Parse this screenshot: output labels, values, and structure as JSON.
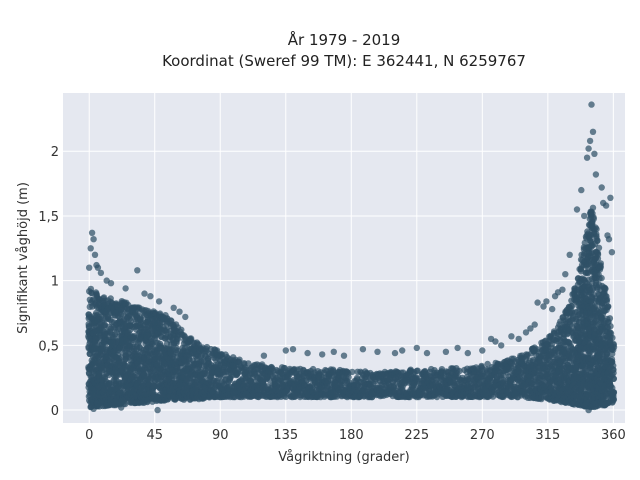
{
  "chart_data": {
    "type": "scatter",
    "title": "År 1979 - 2019",
    "subtitle": "Koordinat (Sweref 99 TM): E 362441, N 6259767",
    "xlabel": "Vågriktning (grader)",
    "ylabel": "Signifikant våghöjd (m)",
    "xlim": [
      -18,
      368
    ],
    "ylim": [
      -0.1,
      2.45
    ],
    "x_ticks": [
      0,
      45,
      90,
      135,
      180,
      225,
      270,
      315,
      360
    ],
    "x_tick_labels": [
      "0",
      "45",
      "90",
      "135",
      "180",
      "225",
      "270",
      "315",
      "360"
    ],
    "y_ticks": [
      0,
      0.5,
      1,
      1.5,
      2
    ],
    "y_tick_labels": [
      "0",
      "0,5",
      "1",
      "1,5",
      "2"
    ],
    "grid": true,
    "marker_color": "#2f5167",
    "background_color": "#e5e8f0",
    "envelope": {
      "description_x": [
        0,
        10,
        20,
        30,
        40,
        50,
        55,
        60,
        65,
        70,
        75,
        80,
        85,
        90,
        100,
        110,
        120,
        135,
        150,
        165,
        180,
        195,
        210,
        225,
        240,
        255,
        270,
        285,
        295,
        305,
        315,
        320,
        325,
        330,
        335,
        340,
        345,
        350,
        355,
        360
      ],
      "upper_y": [
        0.95,
        0.88,
        0.85,
        0.82,
        0.78,
        0.75,
        0.72,
        0.68,
        0.6,
        0.55,
        0.52,
        0.5,
        0.48,
        0.45,
        0.4,
        0.37,
        0.35,
        0.33,
        0.32,
        0.32,
        0.3,
        0.3,
        0.3,
        0.32,
        0.32,
        0.33,
        0.35,
        0.38,
        0.42,
        0.48,
        0.56,
        0.62,
        0.72,
        0.82,
        1.0,
        1.3,
        1.6,
        1.3,
        0.9,
        0.55
      ],
      "lower_y": [
        0.02,
        0.03,
        0.04,
        0.05,
        0.06,
        0.07,
        0.08,
        0.08,
        0.08,
        0.08,
        0.08,
        0.09,
        0.1,
        0.1,
        0.1,
        0.1,
        0.1,
        0.1,
        0.1,
        0.1,
        0.1,
        0.1,
        0.1,
        0.1,
        0.1,
        0.1,
        0.1,
        0.1,
        0.1,
        0.09,
        0.08,
        0.07,
        0.06,
        0.05,
        0.04,
        0.03,
        0.02,
        0.03,
        0.04,
        0.06
      ]
    },
    "outliers": [
      {
        "x": 345,
        "y": 2.36
      },
      {
        "x": 346,
        "y": 2.15
      },
      {
        "x": 344,
        "y": 2.08
      },
      {
        "x": 343,
        "y": 2.02
      },
      {
        "x": 347,
        "y": 1.98
      },
      {
        "x": 342,
        "y": 1.95
      },
      {
        "x": 348,
        "y": 1.82
      },
      {
        "x": 352,
        "y": 1.72
      },
      {
        "x": 355,
        "y": 1.58
      },
      {
        "x": 358,
        "y": 1.64
      },
      {
        "x": 357,
        "y": 1.32
      },
      {
        "x": 359,
        "y": 1.22
      },
      {
        "x": 356,
        "y": 1.35
      },
      {
        "x": 353,
        "y": 1.6
      },
      {
        "x": 338,
        "y": 1.7
      },
      {
        "x": 340,
        "y": 1.5
      },
      {
        "x": 335,
        "y": 1.55
      },
      {
        "x": 330,
        "y": 1.2
      },
      {
        "x": 327,
        "y": 1.05
      },
      {
        "x": 2,
        "y": 1.37
      },
      {
        "x": 3,
        "y": 1.32
      },
      {
        "x": 1,
        "y": 1.25
      },
      {
        "x": 4,
        "y": 1.2
      },
      {
        "x": 5,
        "y": 1.12
      },
      {
        "x": 6,
        "y": 1.1
      },
      {
        "x": 8,
        "y": 1.06
      },
      {
        "x": 0,
        "y": 1.1
      },
      {
        "x": 33,
        "y": 1.08
      },
      {
        "x": 12,
        "y": 1.0
      },
      {
        "x": 15,
        "y": 0.98
      },
      {
        "x": 25,
        "y": 0.94
      },
      {
        "x": 38,
        "y": 0.9
      },
      {
        "x": 42,
        "y": 0.88
      },
      {
        "x": 48,
        "y": 0.84
      },
      {
        "x": 58,
        "y": 0.79
      },
      {
        "x": 62,
        "y": 0.76
      },
      {
        "x": 66,
        "y": 0.72
      },
      {
        "x": 120,
        "y": 0.42
      },
      {
        "x": 135,
        "y": 0.46
      },
      {
        "x": 140,
        "y": 0.47
      },
      {
        "x": 150,
        "y": 0.44
      },
      {
        "x": 160,
        "y": 0.43
      },
      {
        "x": 168,
        "y": 0.45
      },
      {
        "x": 175,
        "y": 0.42
      },
      {
        "x": 188,
        "y": 0.47
      },
      {
        "x": 198,
        "y": 0.45
      },
      {
        "x": 210,
        "y": 0.44
      },
      {
        "x": 215,
        "y": 0.46
      },
      {
        "x": 225,
        "y": 0.48
      },
      {
        "x": 232,
        "y": 0.44
      },
      {
        "x": 245,
        "y": 0.45
      },
      {
        "x": 253,
        "y": 0.48
      },
      {
        "x": 260,
        "y": 0.44
      },
      {
        "x": 270,
        "y": 0.46
      },
      {
        "x": 276,
        "y": 0.55
      },
      {
        "x": 279,
        "y": 0.53
      },
      {
        "x": 283,
        "y": 0.5
      },
      {
        "x": 290,
        "y": 0.57
      },
      {
        "x": 295,
        "y": 0.55
      },
      {
        "x": 300,
        "y": 0.6
      },
      {
        "x": 303,
        "y": 0.63
      },
      {
        "x": 306,
        "y": 0.66
      },
      {
        "x": 308,
        "y": 0.83
      },
      {
        "x": 312,
        "y": 0.8
      },
      {
        "x": 314,
        "y": 0.84
      },
      {
        "x": 318,
        "y": 0.78
      },
      {
        "x": 320,
        "y": 0.88
      },
      {
        "x": 322,
        "y": 0.91
      },
      {
        "x": 325,
        "y": 0.93
      },
      {
        "x": 47,
        "y": 0.0
      },
      {
        "x": 343,
        "y": 0.0
      },
      {
        "x": 3,
        "y": 0.01
      },
      {
        "x": 22,
        "y": 0.02
      }
    ]
  }
}
